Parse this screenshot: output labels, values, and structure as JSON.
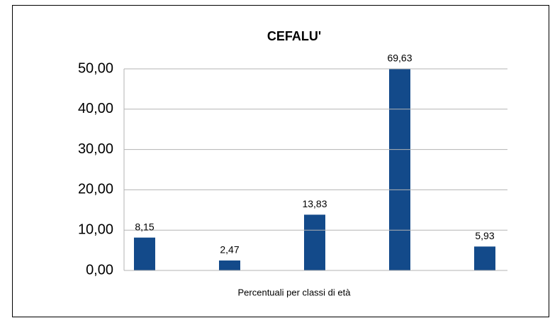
{
  "chart_data": {
    "type": "bar",
    "title": "CEFALU'",
    "x_label": "Percentuali per classi di età",
    "categories": [
      null,
      null,
      null,
      null,
      null
    ],
    "values": [
      8.15,
      2.47,
      13.83,
      69.63,
      5.93
    ],
    "value_labels": [
      "8,15",
      "2,47",
      "13,83",
      "69,63",
      "5,93"
    ],
    "color": "#134a8a",
    "ylim": [
      0,
      50
    ],
    "yticks": [
      {
        "value": 0,
        "label": "0,00"
      },
      {
        "value": 10,
        "label": "10,00"
      },
      {
        "value": 20,
        "label": "20,00"
      },
      {
        "value": 30,
        "label": "30,00"
      },
      {
        "value": 40,
        "label": "40,00"
      },
      {
        "value": 50,
        "label": "50,00"
      }
    ],
    "grid": true
  }
}
